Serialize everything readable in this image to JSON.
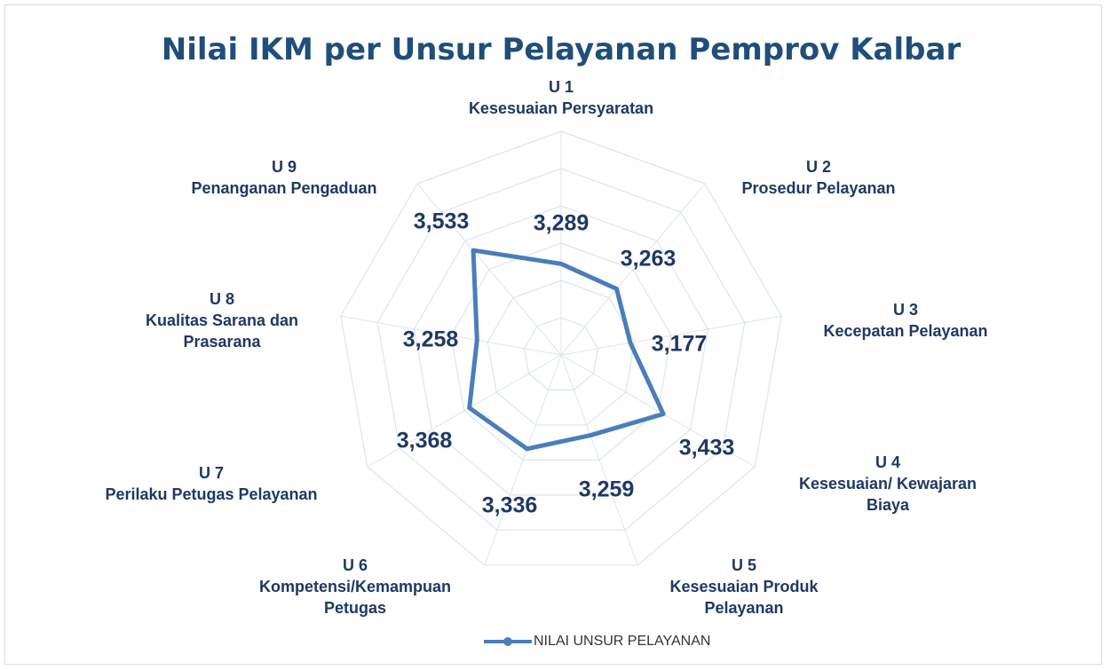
{
  "chart_data": {
    "type": "radar",
    "title": "Nilai IKM per Unsur Pelayanan Pemprov Kalbar",
    "categories": [
      "U 1\nKesesuaian Persyaratan",
      "U 2\nProsedur Pelayanan",
      "U 3\nKecepatan Pelayanan",
      "U 4\nKesesuaian/ Kewajaran\nBiaya",
      "U 5\nKesesuaian Produk\nPelayanan",
      "U 6\nKompetensi/Kemampuan\nPetugas",
      "U 7\nPerilaku Petugas Pelayanan",
      "U 8\nKualitas Sarana dan\nPrasarana",
      "U 9\nPenanganan Pengaduan"
    ],
    "series": [
      {
        "name": "NILAI UNSUR PELAYANAN",
        "color": "#4a7ebb",
        "values": [
          3.289,
          3.263,
          3.177,
          3.433,
          3.259,
          3.336,
          3.368,
          3.258,
          3.533
        ],
        "value_labels": [
          "3,289",
          "3,263",
          "3,177",
          "3,433",
          "3,259",
          "3,336",
          "3,368",
          "3,258",
          "3,533"
        ]
      }
    ],
    "ylim": [
      2.8,
      4.0
    ],
    "yticks": [
      3.0,
      3.2,
      3.4,
      3.6,
      3.8,
      4.0
    ],
    "grid": true,
    "legend": "bottom"
  }
}
